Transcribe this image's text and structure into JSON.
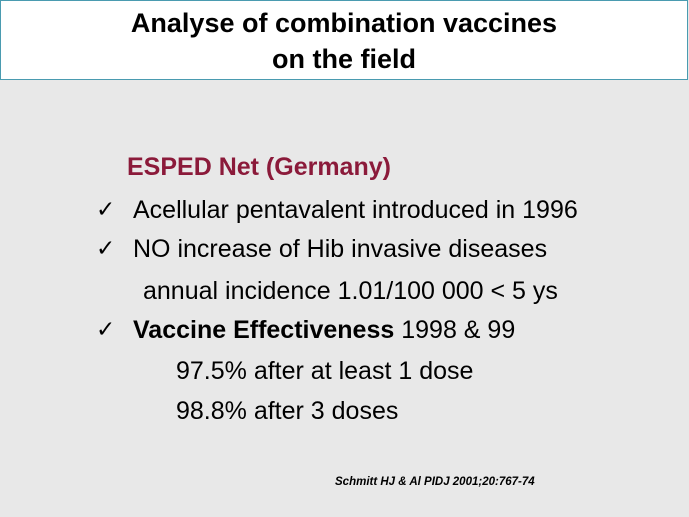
{
  "title": {
    "line1": "Analyse of combination vaccines",
    "line2": "on  the field"
  },
  "subheading": "ESPED Net (Germany)",
  "bullets": [
    {
      "icon": "checkmark-icon",
      "text": "Acellular pentavalent introduced in 1996"
    },
    {
      "icon": "checkmark-icon",
      "text": "NO increase of Hib invasive diseases",
      "continuation": "annual incidence 1.01/100 000 < 5 ys"
    },
    {
      "icon": "checkmark-icon",
      "bold_text": "Vaccine Effectiveness",
      "text": " 1998 & 99",
      "sub_lines": [
        "97.5% after at least 1 dose",
        "98.8% after 3 doses"
      ]
    }
  ],
  "citation": "Schmitt HJ & Al PIDJ 2001;20:767-74",
  "colors": {
    "background": "#e8e8e8",
    "title_box": "#ffffff",
    "title_border": "#4a9bb0",
    "subheading": "#8b1a3a"
  }
}
